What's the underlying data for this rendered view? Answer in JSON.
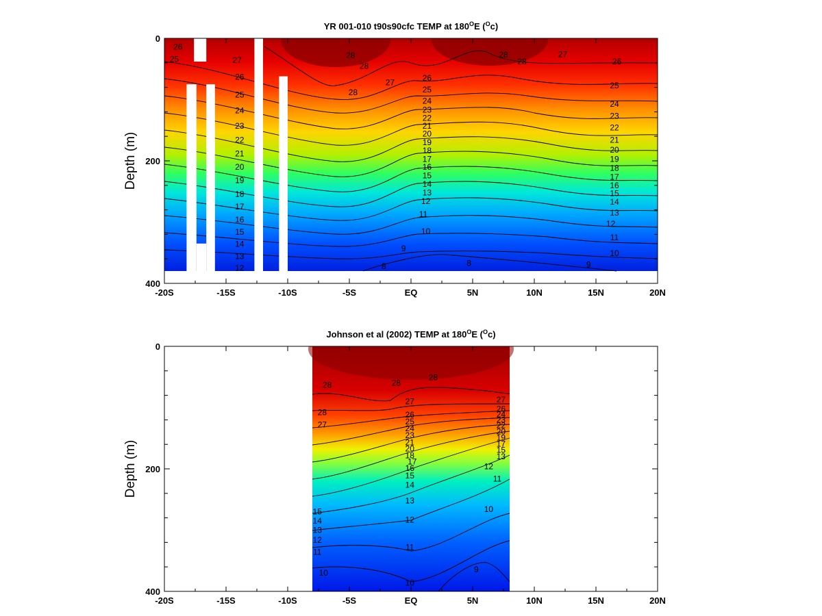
{
  "chart_data": [
    {
      "type": "heatmap",
      "title_main": "YR 001-010 t90s90cfc TEMP at 180",
      "title_sup": "O",
      "title_e": "E (",
      "title_unit_sup": "O",
      "title_unit": "c)",
      "ylabel": "Depth (m)",
      "xlim": [
        -20,
        20
      ],
      "ylim": [
        400,
        0
      ],
      "x_ticks": [
        -20,
        -15,
        -10,
        -5,
        0,
        5,
        10,
        15,
        20
      ],
      "x_tick_labels": [
        "-20S",
        "-15S",
        "-10S",
        "-5S",
        "EQ",
        "5N",
        "10N",
        "15N",
        "20N"
      ],
      "y_ticks": [
        0,
        200,
        400
      ],
      "y_tick_labels": [
        "0",
        "200",
        "400"
      ],
      "data_extent": {
        "lat": [
          -20,
          20
        ],
        "depth": [
          0,
          380
        ]
      },
      "masks": [
        {
          "lat": [
            -17.6,
            -16.6
          ],
          "depth": [
            0,
            38
          ]
        },
        {
          "lat": [
            -18.2,
            -17.4
          ],
          "depth": [
            75,
            380
          ]
        },
        {
          "lat": [
            -17.4,
            -16.6
          ],
          "depth": [
            335,
            380
          ]
        },
        {
          "lat": [
            -16.6,
            -15.9
          ],
          "depth": [
            75,
            380
          ]
        },
        {
          "lat": [
            -12.7,
            -12.0
          ],
          "depth": [
            0,
            380
          ]
        },
        {
          "lat": [
            -10.7,
            -10.0
          ],
          "depth": [
            62,
            380
          ]
        }
      ],
      "isotherm_labels": [
        {
          "lat": -18.9,
          "depth": 14,
          "text": "26"
        },
        {
          "lat": -19.2,
          "depth": 34,
          "text": "25"
        },
        {
          "lat": -14.1,
          "depth": 36,
          "text": "27"
        },
        {
          "lat": -13.9,
          "depth": 63,
          "text": "26"
        },
        {
          "lat": -13.9,
          "depth": 92,
          "text": "25"
        },
        {
          "lat": -13.9,
          "depth": 118,
          "text": "24"
        },
        {
          "lat": -13.9,
          "depth": 143,
          "text": "23"
        },
        {
          "lat": -13.9,
          "depth": 166,
          "text": "22"
        },
        {
          "lat": -13.9,
          "depth": 188,
          "text": "21"
        },
        {
          "lat": -13.9,
          "depth": 210,
          "text": "20"
        },
        {
          "lat": -13.9,
          "depth": 232,
          "text": "19"
        },
        {
          "lat": -13.9,
          "depth": 254,
          "text": "18"
        },
        {
          "lat": -13.9,
          "depth": 275,
          "text": "17"
        },
        {
          "lat": -13.9,
          "depth": 296,
          "text": "16"
        },
        {
          "lat": -13.9,
          "depth": 316,
          "text": "15"
        },
        {
          "lat": -13.9,
          "depth": 336,
          "text": "14"
        },
        {
          "lat": -13.9,
          "depth": 356,
          "text": "13"
        },
        {
          "lat": -13.9,
          "depth": 375,
          "text": "12"
        },
        {
          "lat": -4.9,
          "depth": 28,
          "text": "28"
        },
        {
          "lat": -3.8,
          "depth": 45,
          "text": "28"
        },
        {
          "lat": -4.7,
          "depth": 88,
          "text": "28"
        },
        {
          "lat": -1.7,
          "depth": 72,
          "text": "27"
        },
        {
          "lat": 1.3,
          "depth": 65,
          "text": "26"
        },
        {
          "lat": 1.3,
          "depth": 84,
          "text": "25"
        },
        {
          "lat": 1.3,
          "depth": 102,
          "text": "24"
        },
        {
          "lat": 1.3,
          "depth": 117,
          "text": "23"
        },
        {
          "lat": 1.3,
          "depth": 130,
          "text": "22"
        },
        {
          "lat": 1.3,
          "depth": 143,
          "text": "21"
        },
        {
          "lat": 1.3,
          "depth": 156,
          "text": "20"
        },
        {
          "lat": 1.3,
          "depth": 170,
          "text": "19"
        },
        {
          "lat": 1.3,
          "depth": 183,
          "text": "18"
        },
        {
          "lat": 1.3,
          "depth": 197,
          "text": "17"
        },
        {
          "lat": 1.3,
          "depth": 210,
          "text": "16"
        },
        {
          "lat": 1.3,
          "depth": 224,
          "text": "15"
        },
        {
          "lat": 1.3,
          "depth": 238,
          "text": "14"
        },
        {
          "lat": 1.3,
          "depth": 252,
          "text": "13"
        },
        {
          "lat": 1.2,
          "depth": 266,
          "text": "12"
        },
        {
          "lat": 1.0,
          "depth": 287,
          "text": "11"
        },
        {
          "lat": 1.2,
          "depth": 315,
          "text": "10"
        },
        {
          "lat": -0.6,
          "depth": 343,
          "text": "9"
        },
        {
          "lat": -2.2,
          "depth": 372,
          "text": "8"
        },
        {
          "lat": 4.7,
          "depth": 367,
          "text": "8"
        },
        {
          "lat": 7.5,
          "depth": 27,
          "text": "28"
        },
        {
          "lat": 9.0,
          "depth": 38,
          "text": "28"
        },
        {
          "lat": 12.3,
          "depth": 26,
          "text": "27"
        },
        {
          "lat": 16.7,
          "depth": 38,
          "text": "26"
        },
        {
          "lat": 16.5,
          "depth": 77,
          "text": "25"
        },
        {
          "lat": 16.5,
          "depth": 107,
          "text": "24"
        },
        {
          "lat": 16.5,
          "depth": 127,
          "text": "23"
        },
        {
          "lat": 16.5,
          "depth": 146,
          "text": "22"
        },
        {
          "lat": 16.5,
          "depth": 166,
          "text": "21"
        },
        {
          "lat": 16.5,
          "depth": 182,
          "text": "20"
        },
        {
          "lat": 16.5,
          "depth": 197,
          "text": "19"
        },
        {
          "lat": 16.5,
          "depth": 212,
          "text": "18"
        },
        {
          "lat": 16.5,
          "depth": 226,
          "text": "17"
        },
        {
          "lat": 16.5,
          "depth": 240,
          "text": "16"
        },
        {
          "lat": 16.5,
          "depth": 253,
          "text": "15"
        },
        {
          "lat": 16.5,
          "depth": 267,
          "text": "14"
        },
        {
          "lat": 16.5,
          "depth": 285,
          "text": "13"
        },
        {
          "lat": 16.2,
          "depth": 303,
          "text": "12"
        },
        {
          "lat": 16.5,
          "depth": 325,
          "text": "11"
        },
        {
          "lat": 16.5,
          "depth": 351,
          "text": "10"
        },
        {
          "lat": 14.4,
          "depth": 369,
          "text": "9"
        }
      ]
    },
    {
      "type": "heatmap",
      "title_main": "Johnson et al (2002) TEMP at 180",
      "title_sup": "O",
      "title_e": "E (",
      "title_unit_sup": "O",
      "title_unit": "c)",
      "ylabel": "Depth (m)",
      "xlim": [
        -20,
        20
      ],
      "ylim": [
        400,
        0
      ],
      "x_ticks": [
        -20,
        -15,
        -10,
        -5,
        0,
        5,
        10,
        15,
        20
      ],
      "x_tick_labels": [
        "-20S",
        "-15S",
        "-10S",
        "-5S",
        "EQ",
        "5N",
        "10N",
        "15N",
        "20N"
      ],
      "y_ticks": [
        0,
        200,
        400
      ],
      "y_tick_labels": [
        "0",
        "200",
        "400"
      ],
      "data_extent": {
        "lat": [
          -8,
          8
        ],
        "depth": [
          0,
          400
        ]
      },
      "masks": [],
      "isotherm_labels": [
        {
          "lat": -6.8,
          "depth": 63,
          "text": "28"
        },
        {
          "lat": 1.8,
          "depth": 51,
          "text": "28"
        },
        {
          "lat": -1.2,
          "depth": 60,
          "text": "28"
        },
        {
          "lat": -7.2,
          "depth": 108,
          "text": "28"
        },
        {
          "lat": -7.2,
          "depth": 128,
          "text": "27"
        },
        {
          "lat": -0.1,
          "depth": 90,
          "text": "27"
        },
        {
          "lat": -0.1,
          "depth": 112,
          "text": "26"
        },
        {
          "lat": -0.1,
          "depth": 123,
          "text": "25"
        },
        {
          "lat": -0.1,
          "depth": 134,
          "text": "24"
        },
        {
          "lat": -0.1,
          "depth": 145,
          "text": "23"
        },
        {
          "lat": -0.1,
          "depth": 157,
          "text": "21"
        },
        {
          "lat": -0.1,
          "depth": 167,
          "text": "20"
        },
        {
          "lat": -0.1,
          "depth": 178,
          "text": "18"
        },
        {
          "lat": 0.1,
          "depth": 188,
          "text": "17"
        },
        {
          "lat": -0.1,
          "depth": 199,
          "text": "16"
        },
        {
          "lat": -0.1,
          "depth": 211,
          "text": "15"
        },
        {
          "lat": -0.1,
          "depth": 226,
          "text": "14"
        },
        {
          "lat": -0.1,
          "depth": 252,
          "text": "13"
        },
        {
          "lat": -0.1,
          "depth": 283,
          "text": "12"
        },
        {
          "lat": -0.1,
          "depth": 328,
          "text": "11"
        },
        {
          "lat": -0.1,
          "depth": 386,
          "text": "10"
        },
        {
          "lat": -7.6,
          "depth": 270,
          "text": "15"
        },
        {
          "lat": -7.6,
          "depth": 285,
          "text": "14"
        },
        {
          "lat": -7.6,
          "depth": 300,
          "text": "13"
        },
        {
          "lat": -7.6,
          "depth": 316,
          "text": "12"
        },
        {
          "lat": -7.6,
          "depth": 336,
          "text": "11"
        },
        {
          "lat": -7.1,
          "depth": 370,
          "text": "10"
        },
        {
          "lat": 7.3,
          "depth": 87,
          "text": "27"
        },
        {
          "lat": 7.3,
          "depth": 102,
          "text": "26"
        },
        {
          "lat": 7.3,
          "depth": 111,
          "text": "24"
        },
        {
          "lat": 7.3,
          "depth": 120,
          "text": "23"
        },
        {
          "lat": 7.3,
          "depth": 129,
          "text": "22"
        },
        {
          "lat": 7.3,
          "depth": 139,
          "text": "20"
        },
        {
          "lat": 7.3,
          "depth": 149,
          "text": "19"
        },
        {
          "lat": 7.3,
          "depth": 159,
          "text": "17"
        },
        {
          "lat": 7.3,
          "depth": 169,
          "text": "15"
        },
        {
          "lat": 7.3,
          "depth": 180,
          "text": "13"
        },
        {
          "lat": 6.3,
          "depth": 196,
          "text": "12"
        },
        {
          "lat": 7.0,
          "depth": 216,
          "text": "11"
        },
        {
          "lat": 6.3,
          "depth": 266,
          "text": "10"
        },
        {
          "lat": 5.3,
          "depth": 364,
          "text": "9"
        }
      ]
    }
  ]
}
